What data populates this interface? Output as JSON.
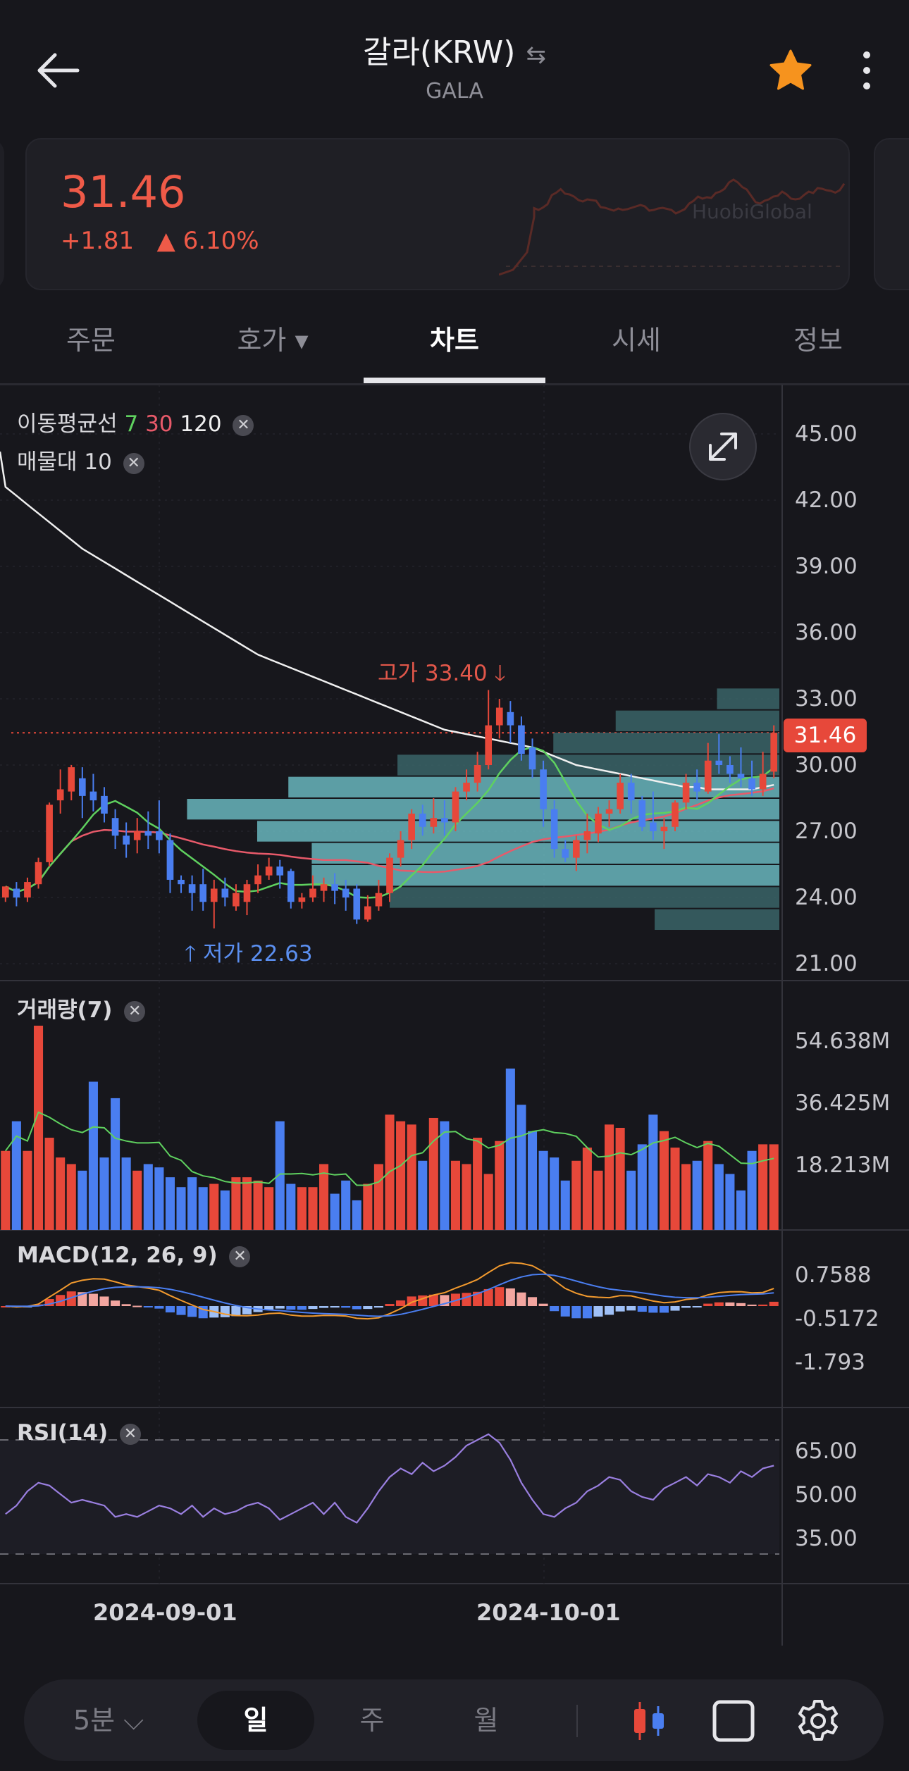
{
  "header": {
    "title": "갈라(KRW)",
    "subtitle": "GALA",
    "swap_icon": "swap-arrows-icon",
    "back_icon": "arrow-left-icon",
    "star_icon": "star-icon",
    "more_icon": "more-vertical-icon"
  },
  "ticker": {
    "price": "31.46",
    "change_abs": "+1.81",
    "change_pct": "▲ 6.10%",
    "watermark": "HuobiGlobal"
  },
  "tabs": [
    {
      "label": "주문"
    },
    {
      "label": "호가 ▾"
    },
    {
      "label": "차트"
    },
    {
      "label": "시세"
    },
    {
      "label": "정보"
    }
  ],
  "legend": {
    "ma_label": "이동평균선",
    "ma7": "7",
    "ma30": "30",
    "ma120": "120",
    "vp_label": "매물대",
    "vp_value": "10",
    "volume_label": "거래량(7)",
    "macd_label": "MACD(12, 26, 9)",
    "rsi_label": "RSI(14)"
  },
  "annotations": {
    "high": "고가 33.40",
    "low": "저가 22.63",
    "last_price": "31.46"
  },
  "colors": {
    "up": "#e7483a",
    "down": "#4a7ef0",
    "ma7": "#5fd15f",
    "ma30": "#e85a6a",
    "ma120": "#f0f0f0",
    "volume_profile": "#6fc4cc"
  },
  "chart_data": {
    "type": "candlestick",
    "price_axis": [
      "45.00",
      "42.00",
      "39.00",
      "36.00",
      "33.00",
      "30.00",
      "27.00",
      "24.00",
      "21.00"
    ],
    "volume_axis": [
      "54.638M",
      "36.425M",
      "18.213M"
    ],
    "macd_axis": [
      "0.7588",
      "-0.5172",
      "-1.793"
    ],
    "rsi_axis": [
      "65.00",
      "50.00",
      "35.00"
    ],
    "x_labels": [
      "2024-09-01",
      "2024-10-01"
    ],
    "ylim": [
      21,
      46.5
    ],
    "candles": [
      [
        24.0,
        24.5,
        23.8,
        24.3
      ],
      [
        24.4,
        24.0,
        23.6,
        24.7
      ],
      [
        24.0,
        24.7,
        23.8,
        24.9
      ],
      [
        24.6,
        25.6,
        24.4,
        25.8
      ],
      [
        25.6,
        28.2,
        25.4,
        28.3
      ],
      [
        28.4,
        28.9,
        27.8,
        29.8
      ],
      [
        28.8,
        29.9,
        28.4,
        30.0
      ],
      [
        29.4,
        28.6,
        27.6,
        29.9
      ],
      [
        28.8,
        28.4,
        27.9,
        29.6
      ],
      [
        28.6,
        27.8,
        27.4,
        29.0
      ],
      [
        27.6,
        26.8,
        26.2,
        28.0
      ],
      [
        26.8,
        26.4,
        25.8,
        27.4
      ],
      [
        26.6,
        27.0,
        26.0,
        27.6
      ],
      [
        27.0,
        26.8,
        26.2,
        27.9
      ],
      [
        27.0,
        26.6,
        26.0,
        28.4
      ],
      [
        26.6,
        24.8,
        24.2,
        26.9
      ],
      [
        24.8,
        24.6,
        24.2,
        25.0
      ],
      [
        24.6,
        24.2,
        23.4,
        25.0
      ],
      [
        24.6,
        23.8,
        23.4,
        25.3
      ],
      [
        23.8,
        24.4,
        22.6,
        24.8
      ],
      [
        24.4,
        24.0,
        23.6,
        24.9
      ],
      [
        23.6,
        24.2,
        23.4,
        24.6
      ],
      [
        23.8,
        24.6,
        23.2,
        24.8
      ],
      [
        24.6,
        25.0,
        24.2,
        25.5
      ],
      [
        25.0,
        25.4,
        24.8,
        25.8
      ],
      [
        25.4,
        25.0,
        24.4,
        25.7
      ],
      [
        25.2,
        23.8,
        23.5,
        25.3
      ],
      [
        23.8,
        24.0,
        23.5,
        24.2
      ],
      [
        24.0,
        24.4,
        23.8,
        25.0
      ],
      [
        24.3,
        24.6,
        23.8,
        24.9
      ],
      [
        24.6,
        24.3,
        23.7,
        25.1
      ],
      [
        24.4,
        24.0,
        23.4,
        24.8
      ],
      [
        24.4,
        23.0,
        22.8,
        24.6
      ],
      [
        23.0,
        23.6,
        22.9,
        24.1
      ],
      [
        23.6,
        24.2,
        23.4,
        24.8
      ],
      [
        24.2,
        25.8,
        23.8,
        26.0
      ],
      [
        25.8,
        26.6,
        25.4,
        27.0
      ],
      [
        26.6,
        27.8,
        26.2,
        28.0
      ],
      [
        27.8,
        27.2,
        26.8,
        28.2
      ],
      [
        27.2,
        27.6,
        26.9,
        28.5
      ],
      [
        27.6,
        27.4,
        26.8,
        28.4
      ],
      [
        27.4,
        28.8,
        27.0,
        29.0
      ],
      [
        28.8,
        29.2,
        28.4,
        29.8
      ],
      [
        29.2,
        30.0,
        28.8,
        30.6
      ],
      [
        30.0,
        31.8,
        29.8,
        33.4
      ],
      [
        31.8,
        32.6,
        31.2,
        33.0
      ],
      [
        32.4,
        31.8,
        31.0,
        32.9
      ],
      [
        31.8,
        30.5,
        30.2,
        32.2
      ],
      [
        30.8,
        29.8,
        29.4,
        31.2
      ],
      [
        29.8,
        28.0,
        27.2,
        30.2
      ],
      [
        28.0,
        26.2,
        25.8,
        28.4
      ],
      [
        26.2,
        25.8,
        25.6,
        26.6
      ],
      [
        25.8,
        26.6,
        25.2,
        26.8
      ],
      [
        26.6,
        27.0,
        26.0,
        27.8
      ],
      [
        26.9,
        27.8,
        26.5,
        28.1
      ],
      [
        27.8,
        28.0,
        27.2,
        28.4
      ],
      [
        28.0,
        29.2,
        27.8,
        29.6
      ],
      [
        29.2,
        28.4,
        27.8,
        29.6
      ],
      [
        28.4,
        27.2,
        27.0,
        28.6
      ],
      [
        27.4,
        27.0,
        26.6,
        28.8
      ],
      [
        27.0,
        27.2,
        26.2,
        27.6
      ],
      [
        27.2,
        28.3,
        27.0,
        28.4
      ],
      [
        28.3,
        29.2,
        28.0,
        29.6
      ],
      [
        29.2,
        28.8,
        28.4,
        29.8
      ],
      [
        28.8,
        30.2,
        28.7,
        31.0
      ],
      [
        30.2,
        30.0,
        29.6,
        31.4
      ],
      [
        30.0,
        29.6,
        29.2,
        30.4
      ],
      [
        29.6,
        29.4,
        29.0,
        30.8
      ],
      [
        29.4,
        28.9,
        28.6,
        30.2
      ],
      [
        28.9,
        29.6,
        28.6,
        30.6
      ],
      [
        29.7,
        31.46,
        29.4,
        31.8
      ]
    ],
    "volumes": [
      24,
      33,
      24,
      62,
      28,
      22,
      20,
      18,
      45,
      22,
      40,
      22,
      18,
      20,
      19,
      16,
      13,
      16,
      13,
      14,
      12,
      16,
      16,
      15,
      13,
      33,
      14,
      13,
      13,
      20,
      11,
      15,
      9,
      14,
      20,
      35,
      33,
      32,
      21,
      34,
      33,
      21,
      20,
      28,
      17,
      27,
      49,
      38,
      30,
      24,
      22,
      15,
      21,
      25,
      18,
      32,
      31,
      18,
      26,
      35,
      30,
      25,
      20,
      21,
      27,
      20,
      17,
      12,
      24,
      26,
      26
    ],
    "volume_profile": [
      {
        "price": 33.0,
        "length": 0.08
      },
      {
        "price": 32.0,
        "length": 0.21
      },
      {
        "price": 31.0,
        "length": 0.29
      },
      {
        "price": 30.0,
        "length": 0.49
      },
      {
        "price": 29.0,
        "length": 0.63
      },
      {
        "price": 28.0,
        "length": 0.76
      },
      {
        "price": 27.0,
        "length": 0.67
      },
      {
        "price": 26.0,
        "length": 0.6
      },
      {
        "price": 25.0,
        "length": 0.6
      },
      {
        "price": 24.0,
        "length": 0.5
      },
      {
        "price": 23.0,
        "length": 0.16
      }
    ],
    "ma120": [
      42.6,
      42.2,
      41.8,
      41.4,
      41.0,
      40.6,
      40.2,
      39.8,
      39.5,
      39.2,
      38.9,
      38.6,
      38.3,
      38.0,
      37.7,
      37.4,
      37.1,
      36.8,
      36.5,
      36.2,
      35.9,
      35.6,
      35.3,
      35.0,
      34.8,
      34.6,
      34.4,
      34.2,
      34.0,
      33.8,
      33.6,
      33.4,
      33.2,
      33.0,
      32.8,
      32.6,
      32.4,
      32.2,
      32.0,
      31.8,
      31.6,
      31.5,
      31.4,
      31.3,
      31.2,
      31.1,
      31.0,
      30.9,
      30.8,
      30.6,
      30.4,
      30.2,
      30.0,
      29.9,
      29.8,
      29.7,
      29.6,
      29.5,
      29.4,
      29.3,
      29.2,
      29.1,
      29.0,
      29.0,
      28.9,
      28.9,
      28.9,
      28.9,
      28.9,
      29.0,
      29.1
    ],
    "rsi": [
      44,
      47,
      52,
      55,
      54,
      51,
      48,
      49,
      48,
      47,
      43,
      44,
      43,
      45,
      47,
      46,
      44,
      47,
      43,
      46,
      44,
      45,
      47,
      48,
      46,
      42,
      44,
      46,
      48,
      44,
      48,
      43,
      41,
      46,
      52,
      57,
      60,
      58,
      62,
      59,
      61,
      64,
      68,
      70,
      72,
      69,
      63,
      55,
      49,
      44,
      43,
      46,
      48,
      52,
      54,
      57,
      56,
      52,
      50,
      49,
      53,
      55,
      57,
      54,
      58,
      57,
      55,
      59,
      57,
      60,
      61
    ]
  },
  "toolbar": {
    "interval": "5분 ⌵",
    "day": "일",
    "week": "주",
    "month": "월",
    "candle_icon": "candlestick-icon",
    "square_icon": "square-icon",
    "settings_icon": "gear-icon"
  }
}
